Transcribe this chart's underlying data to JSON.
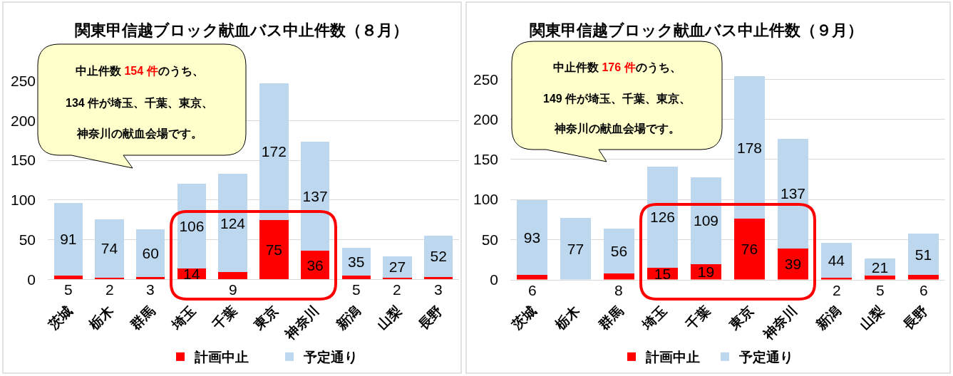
{
  "chart_data": [
    {
      "type": "bar",
      "title": "関東甲信越ブロック献血バス中止件数（８月）",
      "categories": [
        "茨城",
        "栃木",
        "群馬",
        "埼玉",
        "千葉",
        "東京",
        "神奈川",
        "新潟",
        "山梨",
        "長野"
      ],
      "stacked": true,
      "series": [
        {
          "name": "計画中止",
          "color": "#ff0000",
          "values": [
            5,
            2,
            3,
            14,
            9,
            75,
            36,
            5,
            2,
            3
          ]
        },
        {
          "name": "予定通り",
          "color": "#bdd7ee",
          "values": [
            91,
            74,
            60,
            106,
            124,
            172,
            137,
            35,
            27,
            52
          ]
        }
      ],
      "ylim": [
        0,
        250
      ],
      "yticks": [
        0,
        50,
        100,
        150,
        200,
        250
      ],
      "grid": "y",
      "legend": "bottom",
      "data_labels": true,
      "annotations": [
        "中止件数 154 件のうち、",
        "134 件が埼玉、千葉、東京、",
        "神奈川の献血会場です。"
      ]
    },
    {
      "type": "bar",
      "title": "関東甲信越ブロック献血バス中止件数（９月）",
      "categories": [
        "茨城",
        "栃木",
        "群馬",
        "埼玉",
        "千葉",
        "東京",
        "神奈川",
        "新潟",
        "山梨",
        "長野"
      ],
      "stacked": true,
      "series": [
        {
          "name": "計画中止",
          "color": "#ff0000",
          "values": [
            6,
            0,
            8,
            15,
            19,
            76,
            39,
            2,
            5,
            6
          ],
          "value_labels": [
            "6",
            null,
            "8",
            "15",
            "19",
            "76",
            "39",
            "2",
            "5",
            "6"
          ]
        },
        {
          "name": "予定通り",
          "color": "#bdd7ee",
          "values": [
            93,
            77,
            56,
            126,
            109,
            178,
            137,
            44,
            21,
            51
          ],
          "value_labels": [
            "93",
            "77",
            "56",
            "126",
            "109",
            "178",
            "137",
            "44",
            "21",
            "51"
          ]
        }
      ],
      "ylim": [
        0,
        255
      ],
      "yticks": [
        0,
        50,
        100,
        150,
        200,
        250
      ],
      "grid": "y",
      "legend": "bottom",
      "annotations": [
        "中止件数 176 件のうち、",
        "149 件が埼玉、千葉、東京、",
        "神奈川の献血会場です。"
      ]
    }
  ]
}
